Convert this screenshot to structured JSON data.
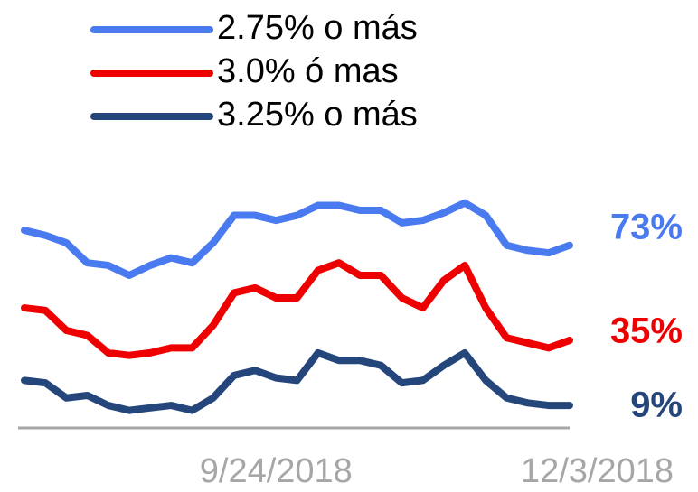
{
  "chart_data": {
    "type": "line",
    "categories": [
      "7/26/2018",
      "7/31/2018",
      "8/5/2018",
      "8/10/2018",
      "8/15/2018",
      "8/20/2018",
      "8/25/2018",
      "8/30/2018",
      "9/4/2018",
      "9/9/2018",
      "9/14/2018",
      "9/19/2018",
      "9/24/2018",
      "9/29/2018",
      "10/4/2018",
      "10/9/2018",
      "10/14/2018",
      "10/19/2018",
      "10/24/2018",
      "10/29/2018",
      "11/3/2018",
      "11/8/2018",
      "11/13/2018",
      "11/18/2018",
      "11/23/2018",
      "11/28/2018",
      "12/3/2018"
    ],
    "xticks": [
      "9/24/2018",
      "12/3/2018"
    ],
    "ylim": [
      0,
      100
    ],
    "legend": "top-left",
    "series": [
      {
        "name": "2.75% o más",
        "color": "#4a7af0",
        "values": [
          79,
          77,
          74,
          66,
          65,
          61,
          65,
          68,
          66,
          74,
          85,
          85,
          83,
          85,
          89,
          89,
          87,
          87,
          82,
          83,
          86,
          90,
          85,
          73,
          71,
          70,
          73
        ],
        "value_labels": [
          null,
          null,
          null,
          null,
          null,
          null,
          null,
          null,
          null,
          null,
          null,
          null,
          null,
          null,
          null,
          null,
          null,
          null,
          null,
          null,
          null,
          null,
          null,
          null,
          null,
          null,
          "73%"
        ]
      },
      {
        "name": "3.0% ó mas",
        "color": "#ee0000",
        "values": [
          48,
          47,
          39,
          37,
          30,
          29,
          30,
          32,
          32,
          41,
          54,
          56,
          52,
          52,
          63,
          66,
          61,
          61,
          52,
          48,
          59,
          65,
          48,
          36,
          34,
          32,
          35
        ],
        "value_labels": [
          null,
          null,
          null,
          null,
          null,
          null,
          null,
          null,
          null,
          null,
          null,
          null,
          null,
          null,
          null,
          null,
          null,
          null,
          null,
          null,
          null,
          null,
          null,
          null,
          null,
          null,
          "35%"
        ]
      },
      {
        "name": "3.25% o más",
        "color": "#24467a",
        "values": [
          19,
          18,
          12,
          13,
          9,
          7,
          8,
          9,
          7,
          12,
          21,
          23,
          20,
          19,
          30,
          27,
          27,
          25,
          18,
          19,
          25,
          30,
          19,
          12,
          10,
          9,
          9
        ],
        "value_labels": [
          null,
          null,
          null,
          null,
          null,
          null,
          null,
          null,
          null,
          null,
          null,
          null,
          null,
          null,
          null,
          null,
          null,
          null,
          null,
          null,
          null,
          null,
          null,
          null,
          null,
          null,
          "9%"
        ]
      }
    ]
  }
}
